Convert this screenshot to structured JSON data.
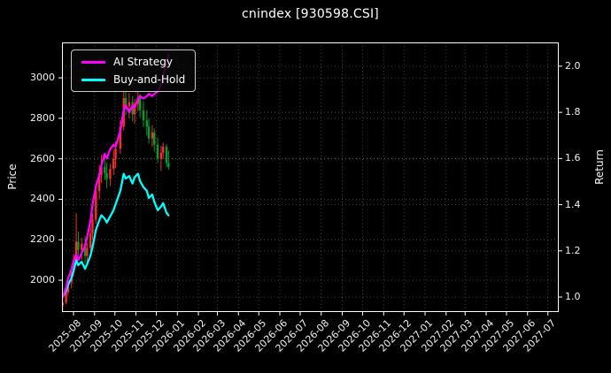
{
  "title": "cnindex [930598.CSI]",
  "legend": {
    "items": [
      {
        "label": "AI Strategy",
        "color": "#ff00ff"
      },
      {
        "label": "Buy-and-Hold",
        "color": "#00ffff"
      }
    ]
  },
  "colors": {
    "background": "#000000",
    "spine": "#ffffff",
    "grid": "rgba(255,255,255,0.28)",
    "candle_up": "#ff2a2a",
    "candle_down": "#00a02a",
    "ai_strategy": "#ff00ff",
    "buy_and_hold": "#00ffff",
    "text": "#f0f0f0"
  },
  "chart_data": {
    "type": "candlestick+line",
    "title": "cnindex [930598.CSI]",
    "grid": "dotted",
    "legend_position": "upper-left",
    "x_axis": {
      "start": "2025-07-15",
      "end": "2027-07-17",
      "ticks": [
        {
          "date": "2025-08-01",
          "label": "2025-08"
        },
        {
          "date": "2025-09-01",
          "label": "2025-09"
        },
        {
          "date": "2025-10-01",
          "label": "2025-10"
        },
        {
          "date": "2025-11-01",
          "label": "2025-11"
        },
        {
          "date": "2025-12-01",
          "label": "2025-12"
        },
        {
          "date": "2026-01-01",
          "label": "2026-01"
        },
        {
          "date": "2026-02-01",
          "label": "2026-02"
        },
        {
          "date": "2026-03-01",
          "label": "2026-03"
        },
        {
          "date": "2026-04-01",
          "label": "2026-04"
        },
        {
          "date": "2026-05-01",
          "label": "2026-05"
        },
        {
          "date": "2026-06-01",
          "label": "2026-06"
        },
        {
          "date": "2026-07-01",
          "label": "2026-07"
        },
        {
          "date": "2026-08-01",
          "label": "2026-08"
        },
        {
          "date": "2026-09-01",
          "label": "2026-09"
        },
        {
          "date": "2026-10-01",
          "label": "2026-10"
        },
        {
          "date": "2026-11-01",
          "label": "2026-11"
        },
        {
          "date": "2026-12-01",
          "label": "2026-12"
        },
        {
          "date": "2027-01-01",
          "label": "2027-01"
        },
        {
          "date": "2027-02-01",
          "label": "2027-02"
        },
        {
          "date": "2027-03-01",
          "label": "2027-03"
        },
        {
          "date": "2027-04-01",
          "label": "2027-04"
        },
        {
          "date": "2027-05-01",
          "label": "2027-05"
        },
        {
          "date": "2027-06-01",
          "label": "2027-06"
        },
        {
          "date": "2027-07-01",
          "label": "2027-07"
        }
      ]
    },
    "price_axis": {
      "label": "Price",
      "ticks": [
        2000,
        2200,
        2400,
        2600,
        2800,
        3000
      ],
      "range": [
        1843,
        3175
      ]
    },
    "return_axis": {
      "label": "Return",
      "ticks": [
        "1.0",
        "1.2",
        "1.4",
        "1.6",
        "1.8",
        "2.0"
      ],
      "values": [
        1.0,
        1.2,
        1.4,
        1.6,
        1.8,
        2.0
      ],
      "range": [
        0.935,
        2.103
      ]
    },
    "dates": [
      "2025-07-16",
      "2025-07-21",
      "2025-07-24",
      "2025-07-29",
      "2025-08-01",
      "2025-08-05",
      "2025-08-08",
      "2025-08-13",
      "2025-08-18",
      "2025-08-21",
      "2025-08-26",
      "2025-08-29",
      "2025-09-03",
      "2025-09-08",
      "2025-09-11",
      "2025-09-16",
      "2025-09-19",
      "2025-09-24",
      "2025-09-29",
      "2025-10-02",
      "2025-10-09",
      "2025-10-14",
      "2025-10-17",
      "2025-10-22",
      "2025-10-27",
      "2025-10-30",
      "2025-11-04",
      "2025-11-07",
      "2025-11-12",
      "2025-11-17",
      "2025-11-20",
      "2025-11-25",
      "2025-11-28",
      "2025-12-03",
      "2025-12-08",
      "2025-12-11",
      "2025-12-16",
      "2025-12-19"
    ],
    "candles_ohlc": [
      [
        1875,
        1915,
        1850,
        1890
      ],
      [
        1890,
        1950,
        1880,
        1940
      ],
      [
        1940,
        2010,
        1925,
        1990
      ],
      [
        1990,
        2060,
        1960,
        2045
      ],
      [
        2045,
        2130,
        2020,
        2100
      ],
      [
        2100,
        2330,
        2080,
        2190
      ],
      [
        2190,
        2240,
        2120,
        2150
      ],
      [
        2150,
        2210,
        2100,
        2180
      ],
      [
        2180,
        2220,
        2085,
        2120
      ],
      [
        2120,
        2185,
        2080,
        2160
      ],
      [
        2160,
        2260,
        2140,
        2230
      ],
      [
        2230,
        2330,
        2200,
        2300
      ],
      [
        2300,
        2470,
        2280,
        2440
      ],
      [
        2440,
        2570,
        2400,
        2520
      ],
      [
        2520,
        2620,
        2480,
        2560
      ],
      [
        2560,
        2630,
        2495,
        2530
      ],
      [
        2530,
        2580,
        2455,
        2500
      ],
      [
        2500,
        2575,
        2465,
        2550
      ],
      [
        2550,
        2645,
        2520,
        2600
      ],
      [
        2600,
        2685,
        2555,
        2650
      ],
      [
        2650,
        2790,
        2625,
        2760
      ],
      [
        2760,
        2930,
        2740,
        2900
      ],
      [
        2900,
        2945,
        2815,
        2860
      ],
      [
        2860,
        2925,
        2800,
        2880
      ],
      [
        2880,
        2910,
        2785,
        2820
      ],
      [
        2820,
        2895,
        2775,
        2870
      ],
      [
        2870,
        2930,
        2835,
        2900
      ],
      [
        2900,
        2920,
        2805,
        2840
      ],
      [
        2840,
        2885,
        2755,
        2790
      ],
      [
        2790,
        2840,
        2715,
        2760
      ],
      [
        2760,
        2800,
        2675,
        2700
      ],
      [
        2700,
        2765,
        2660,
        2730
      ],
      [
        2730,
        2750,
        2635,
        2670
      ],
      [
        2670,
        2705,
        2580,
        2600
      ],
      [
        2600,
        2665,
        2540,
        2630
      ],
      [
        2630,
        2680,
        2598,
        2660
      ],
      [
        2660,
        2672,
        2558,
        2580
      ],
      [
        2580,
        2640,
        2545,
        2560
      ]
    ],
    "series": [
      {
        "name": "AI Strategy",
        "color": "#ff00ff",
        "axis": "return",
        "values": [
          1.0,
          1.04,
          1.08,
          1.12,
          1.155,
          1.185,
          1.16,
          1.19,
          1.22,
          1.26,
          1.33,
          1.4,
          1.48,
          1.53,
          1.57,
          1.62,
          1.6,
          1.64,
          1.66,
          1.65,
          1.72,
          1.81,
          1.83,
          1.8,
          1.83,
          1.82,
          1.86,
          1.87,
          1.86,
          1.87,
          1.88,
          1.87,
          1.88,
          1.89,
          1.92,
          1.96,
          2.01,
          2.05
        ]
      },
      {
        "name": "Buy-and-Hold",
        "color": "#00ffff",
        "axis": "return",
        "values": [
          1.0,
          1.026,
          1.053,
          1.082,
          1.111,
          1.159,
          1.138,
          1.153,
          1.122,
          1.143,
          1.18,
          1.217,
          1.291,
          1.333,
          1.354,
          1.339,
          1.323,
          1.349,
          1.376,
          1.402,
          1.46,
          1.534,
          1.513,
          1.524,
          1.492,
          1.519,
          1.534,
          1.503,
          1.476,
          1.46,
          1.429,
          1.444,
          1.413,
          1.376,
          1.392,
          1.407,
          1.365,
          1.354
        ]
      }
    ]
  }
}
